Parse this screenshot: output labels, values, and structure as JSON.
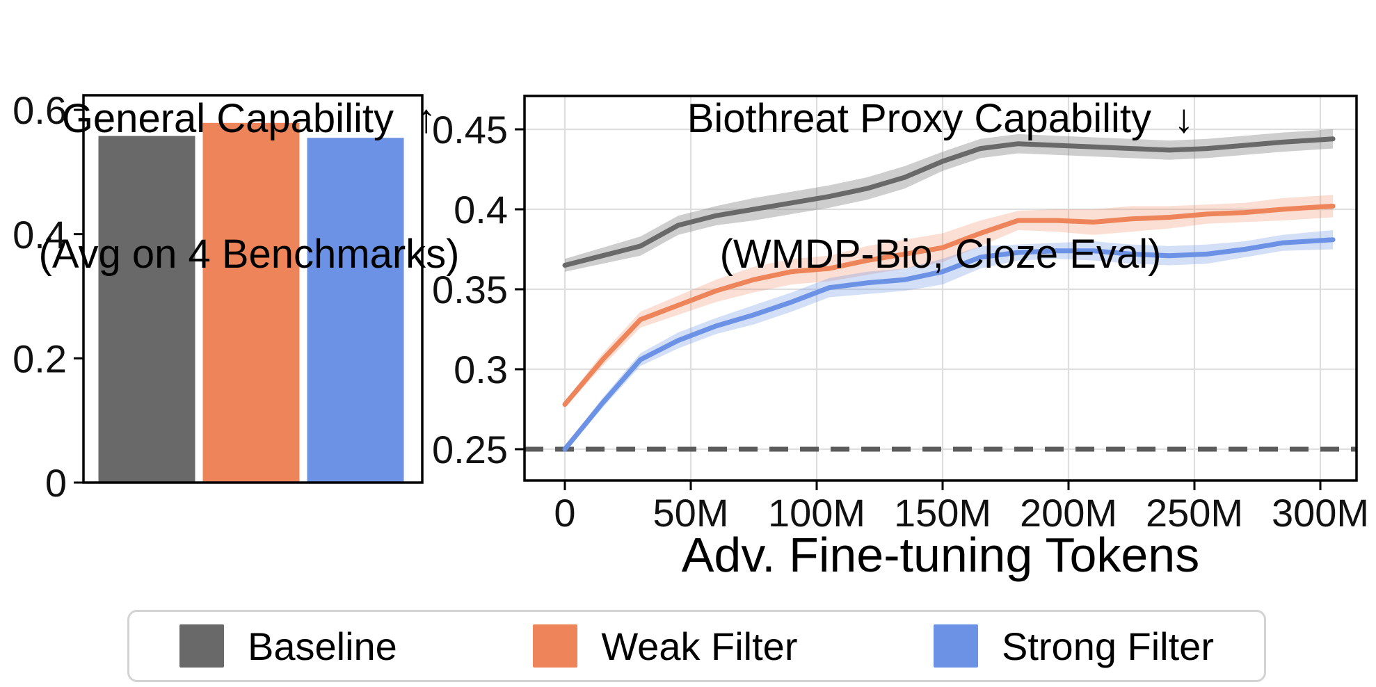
{
  "figure": {
    "background": "#ffffff",
    "colors": {
      "baseline": "#696969",
      "weak_filter": "#EE8459",
      "strong_filter": "#6C92E5",
      "dashed_chance_line": "#5B5B5B",
      "gridline": "#DEDEDE",
      "spine": "#000000",
      "legend_border": "#d3d3d3"
    },
    "legend": {
      "items": [
        {
          "label": "Baseline",
          "color": "#696969"
        },
        {
          "label": "Weak Filter",
          "color": "#EE8459"
        },
        {
          "label": "Strong Filter",
          "color": "#6C92E5"
        }
      ]
    }
  },
  "chart_data": [
    {
      "id": "general-capability",
      "type": "bar",
      "title_line1": "General Capability  ↑",
      "title_line2": "(Avg on 4 Benchmarks)",
      "categories": [
        "Baseline",
        "Weak Filter",
        "Strong Filter"
      ],
      "values": [
        0.558,
        0.579,
        0.555
      ],
      "colors": [
        "#696969",
        "#EE8459",
        "#6C92E5"
      ],
      "ylim": [
        0,
        0.622
      ],
      "yticks": [
        0,
        0.2,
        0.4,
        0.6
      ],
      "ytick_labels": [
        "0",
        "0.2",
        "0.4",
        "0.6"
      ],
      "grid": false
    },
    {
      "id": "biothreat-proxy-capability",
      "type": "line",
      "title_line1": "Biothreat Proxy Capability  ↓",
      "title_line2": "(WMDP-Bio, Cloze Eval)",
      "xlabel": "Adv. Fine-tuning Tokens",
      "x_unit": "millions of tokens",
      "x": [
        0,
        15,
        30,
        45,
        60,
        75,
        90,
        105,
        120,
        135,
        150,
        165,
        180,
        195,
        210,
        225,
        240,
        255,
        270,
        285,
        305
      ],
      "series": [
        {
          "name": "Baseline",
          "color": "#696969",
          "band_opacity": 0.33,
          "values": [
            0.365,
            0.371,
            0.377,
            0.39,
            0.396,
            0.4,
            0.404,
            0.408,
            0.413,
            0.42,
            0.43,
            0.438,
            0.441,
            0.44,
            0.439,
            0.438,
            0.437,
            0.438,
            0.44,
            0.442,
            0.444
          ],
          "band_halfwidth": [
            0.004,
            0.005,
            0.006,
            0.006,
            0.006,
            0.007,
            0.007,
            0.007,
            0.007,
            0.007,
            0.006,
            0.006,
            0.006,
            0.006,
            0.006,
            0.006,
            0.006,
            0.006,
            0.006,
            0.006,
            0.006
          ]
        },
        {
          "name": "Weak Filter",
          "color": "#EE8459",
          "band_opacity": 0.26,
          "values": [
            0.278,
            0.306,
            0.331,
            0.34,
            0.349,
            0.356,
            0.361,
            0.363,
            0.368,
            0.372,
            0.376,
            0.385,
            0.393,
            0.393,
            0.392,
            0.394,
            0.395,
            0.397,
            0.398,
            0.4,
            0.402
          ],
          "band_halfwidth": [
            0.002,
            0.004,
            0.005,
            0.006,
            0.007,
            0.008,
            0.008,
            0.008,
            0.009,
            0.009,
            0.009,
            0.008,
            0.006,
            0.007,
            0.008,
            0.008,
            0.007,
            0.006,
            0.006,
            0.007,
            0.007
          ]
        },
        {
          "name": "Strong Filter",
          "color": "#6C92E5",
          "band_opacity": 0.3,
          "values": [
            0.25,
            0.279,
            0.306,
            0.318,
            0.327,
            0.334,
            0.342,
            0.351,
            0.354,
            0.356,
            0.361,
            0.37,
            0.373,
            0.374,
            0.374,
            0.372,
            0.371,
            0.372,
            0.375,
            0.379,
            0.381
          ],
          "band_halfwidth": [
            0.002,
            0.003,
            0.004,
            0.005,
            0.005,
            0.006,
            0.006,
            0.006,
            0.007,
            0.007,
            0.008,
            0.007,
            0.005,
            0.005,
            0.006,
            0.006,
            0.006,
            0.006,
            0.005,
            0.005,
            0.006
          ]
        }
      ],
      "hline": {
        "value": 0.25,
        "style": "dashed",
        "color": "#5B5B5B"
      },
      "xlim": [
        -16,
        314
      ],
      "ylim": [
        0.2304,
        0.4709
      ],
      "xticks": [
        0,
        50,
        100,
        150,
        200,
        250,
        300
      ],
      "xtick_labels": [
        "0",
        "50M",
        "100M",
        "150M",
        "200M",
        "250M",
        "300M"
      ],
      "yticks": [
        0.25,
        0.3,
        0.35,
        0.4,
        0.45
      ],
      "ytick_labels": [
        "0.25",
        "0.3",
        "0.35",
        "0.4",
        "0.45"
      ],
      "grid": true,
      "legend_position": "bottom"
    }
  ]
}
